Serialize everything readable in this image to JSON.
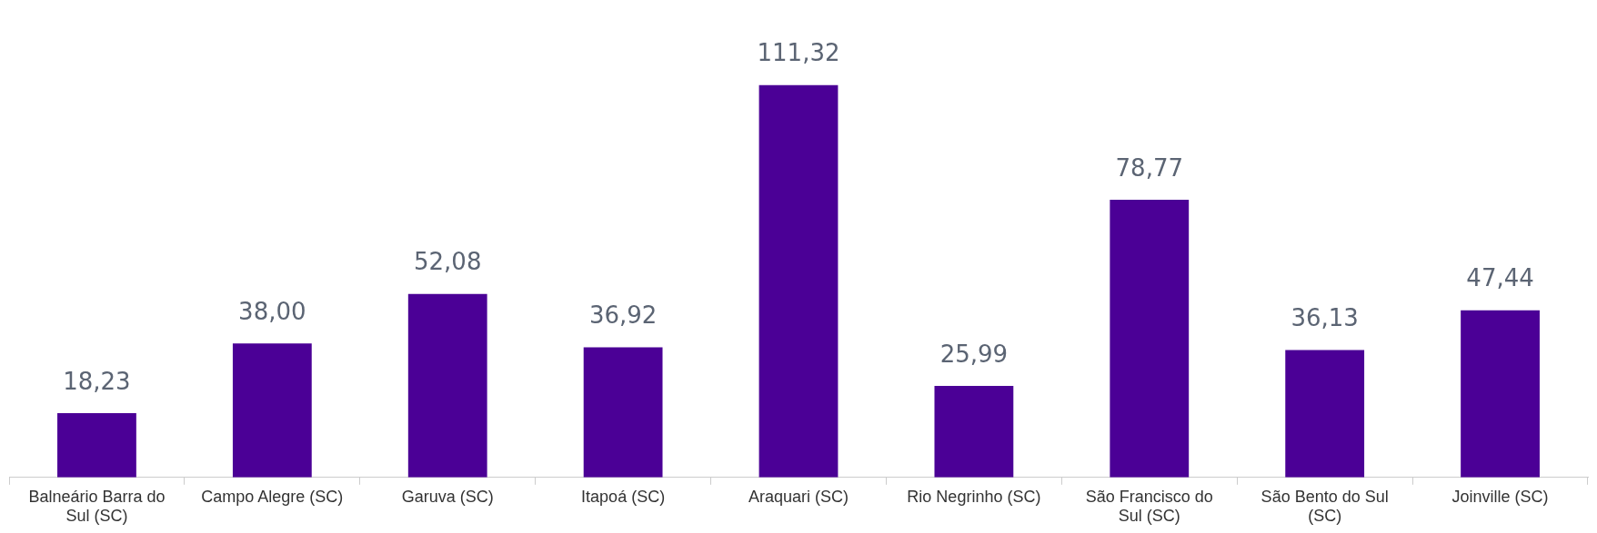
{
  "chart_data": {
    "type": "bar",
    "categories": [
      "Balneário Barra do Sul (SC)",
      "Campo Alegre (SC)",
      "Garuva (SC)",
      "Itapoá (SC)",
      "Araquari (SC)",
      "Rio Negrinho (SC)",
      "São Francisco do Sul (SC)",
      "São Bento do Sul (SC)",
      "Joinville (SC)"
    ],
    "values": [
      18.23,
      38.0,
      52.08,
      36.92,
      111.32,
      25.99,
      78.77,
      36.13,
      47.44
    ],
    "value_labels": [
      "18,23",
      "38,00",
      "52,08",
      "36,92",
      "111,32",
      "25,99",
      "78,77",
      "36,13",
      "47,44"
    ],
    "color": "#4b0096"
  }
}
